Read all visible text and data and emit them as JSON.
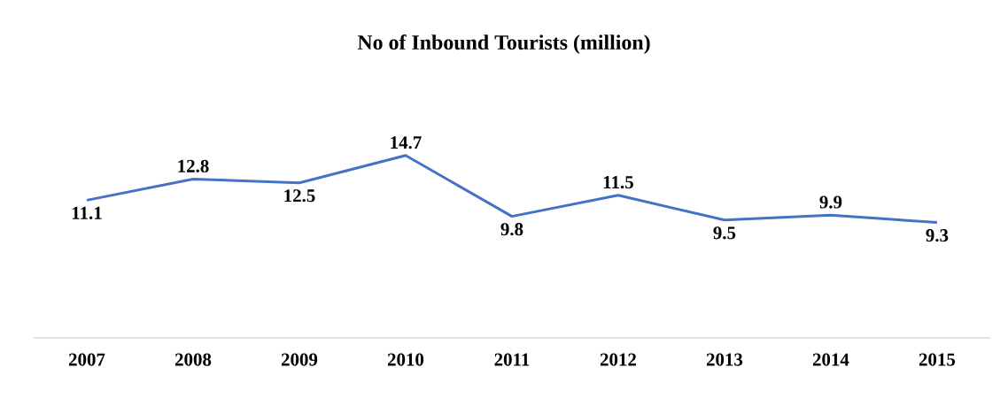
{
  "chart_data": {
    "type": "line",
    "title": "No of Inbound Tourists (million)",
    "categories": [
      "2007",
      "2008",
      "2009",
      "2010",
      "2011",
      "2012",
      "2013",
      "2014",
      "2015"
    ],
    "values": [
      11.1,
      12.8,
      12.5,
      14.7,
      9.8,
      11.5,
      9.5,
      9.9,
      9.3
    ],
    "value_labels": [
      "11.1",
      "12.8",
      "12.5",
      "14.7",
      "9.8",
      "11.5",
      "9.5",
      "9.9",
      "9.3"
    ],
    "color": "#4472c4",
    "tick_labels": "x",
    "marker": "none",
    "line_style": "solid"
  }
}
